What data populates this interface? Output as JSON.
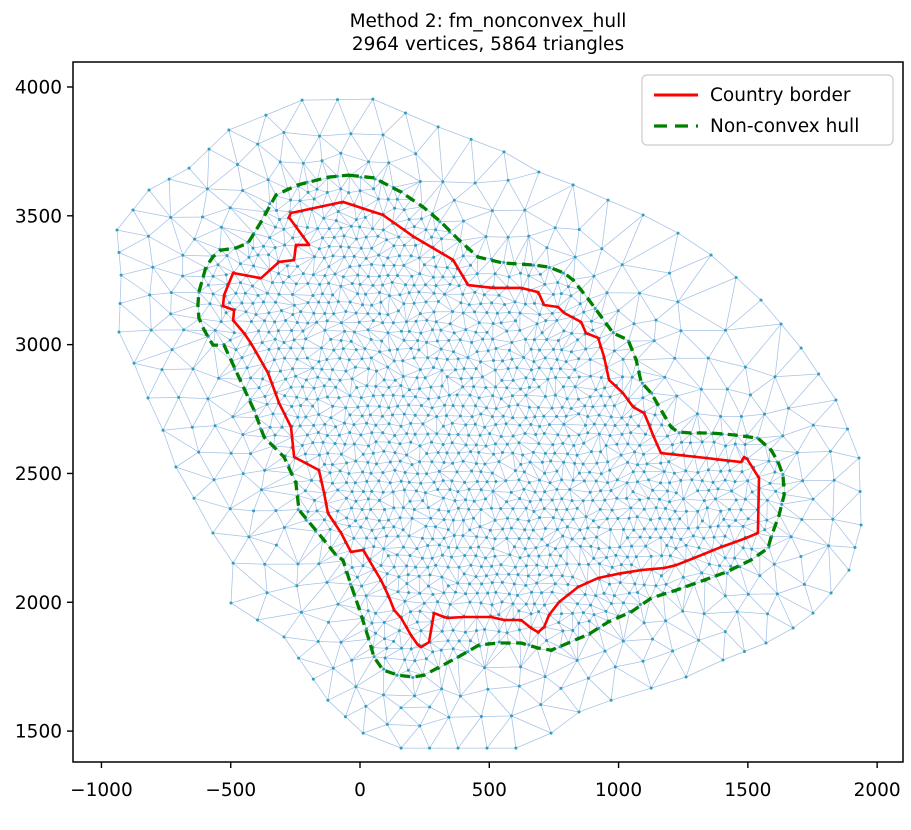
{
  "title": {
    "line1": "Method 2: fm_nonconvex_hull",
    "line2": "2964 vertices, 5864 triangles"
  },
  "legend": {
    "items": [
      {
        "label": "Country border",
        "color": "#ff0000",
        "linestyle": "solid"
      },
      {
        "label": "Non-convex hull",
        "color": "#008000",
        "linestyle": "dashed"
      }
    ]
  },
  "chart_data": {
    "type": "triangular-mesh",
    "title": "Method 2: fm_nonconvex_hull",
    "subtitle": "2964 vertices, 5864 triangles",
    "stated_vertex_count": 2964,
    "stated_triangle_count": 5864,
    "xlim": [
      -1110,
      2100
    ],
    "ylim": [
      1380,
      4097
    ],
    "xticks": [
      -1000,
      -500,
      0,
      500,
      1000,
      1500,
      2000
    ],
    "xtick_labels": [
      "−1000",
      "−500",
      "0",
      "500",
      "1000",
      "1500",
      "2000"
    ],
    "yticks": [
      1500,
      2000,
      2500,
      3000,
      3500,
      4000
    ],
    "ytick_labels": [
      "1500",
      "2000",
      "2500",
      "3000",
      "3500",
      "4000"
    ],
    "grid": false,
    "legend_position": "upper right",
    "series": {
      "country_border": {
        "name": "Country border",
        "color": "#ff0000",
        "closed": true,
        "linewidth": 2.6,
        "points": [
          [
            -66,
            3554
          ],
          [
            89,
            3503
          ],
          [
            209,
            3418
          ],
          [
            360,
            3329
          ],
          [
            418,
            3231
          ],
          [
            514,
            3220
          ],
          [
            623,
            3220
          ],
          [
            689,
            3204
          ],
          [
            712,
            3154
          ],
          [
            766,
            3146
          ],
          [
            789,
            3123
          ],
          [
            855,
            3088
          ],
          [
            874,
            3045
          ],
          [
            921,
            3026
          ],
          [
            944,
            2952
          ],
          [
            963,
            2863
          ],
          [
            1017,
            2812
          ],
          [
            1056,
            2758
          ],
          [
            1099,
            2734
          ],
          [
            1118,
            2688
          ],
          [
            1133,
            2649
          ],
          [
            1164,
            2579
          ],
          [
            1338,
            2560
          ],
          [
            1474,
            2544
          ],
          [
            1485,
            2564
          ],
          [
            1497,
            2556
          ],
          [
            1543,
            2482
          ],
          [
            1539,
            2269
          ],
          [
            1493,
            2249
          ],
          [
            1396,
            2214
          ],
          [
            1292,
            2172
          ],
          [
            1222,
            2144
          ],
          [
            1176,
            2133
          ],
          [
            1087,
            2125
          ],
          [
            1010,
            2113
          ],
          [
            921,
            2094
          ],
          [
            843,
            2059
          ],
          [
            770,
            2001
          ],
          [
            731,
            1950
          ],
          [
            712,
            1904
          ],
          [
            689,
            1884
          ],
          [
            661,
            1900
          ],
          [
            623,
            1931
          ],
          [
            557,
            1931
          ],
          [
            507,
            1943
          ],
          [
            402,
            1943
          ],
          [
            340,
            1939
          ],
          [
            325,
            1943
          ],
          [
            286,
            1958
          ],
          [
            267,
            1845
          ],
          [
            236,
            1826
          ],
          [
            224,
            1834
          ],
          [
            197,
            1873
          ],
          [
            159,
            1939
          ],
          [
            132,
            1970
          ],
          [
            112,
            2020
          ],
          [
            81,
            2086
          ],
          [
            12,
            2203
          ],
          [
            -35,
            2195
          ],
          [
            -73,
            2269
          ],
          [
            -124,
            2346
          ],
          [
            -139,
            2424
          ],
          [
            -159,
            2513
          ],
          [
            -255,
            2564
          ],
          [
            -267,
            2680
          ],
          [
            -313,
            2773
          ],
          [
            -356,
            2890
          ],
          [
            -422,
            3006
          ],
          [
            -449,
            3045
          ],
          [
            -491,
            3095
          ],
          [
            -487,
            3134
          ],
          [
            -530,
            3150
          ],
          [
            -526,
            3192
          ],
          [
            -491,
            3278
          ],
          [
            -383,
            3258
          ],
          [
            -313,
            3321
          ],
          [
            -255,
            3328
          ],
          [
            -248,
            3387
          ],
          [
            -197,
            3387
          ],
          [
            -275,
            3495
          ],
          [
            -267,
            3511
          ]
        ]
      },
      "nonconvex_hull": {
        "name": "Non-convex hull",
        "color": "#008000",
        "closed": true,
        "linewidth": 3.3,
        "dash": [
          10,
          5.5
        ],
        "points": [
          [
            -43,
            3658
          ],
          [
            54,
            3647
          ],
          [
            159,
            3592
          ],
          [
            244,
            3534
          ],
          [
            313,
            3476
          ],
          [
            383,
            3406
          ],
          [
            456,
            3340
          ],
          [
            553,
            3317
          ],
          [
            673,
            3309
          ],
          [
            731,
            3301
          ],
          [
            789,
            3278
          ],
          [
            824,
            3251
          ],
          [
            886,
            3173
          ],
          [
            979,
            3045
          ],
          [
            1037,
            3018
          ],
          [
            1068,
            2940
          ],
          [
            1087,
            2855
          ],
          [
            1126,
            2812
          ],
          [
            1203,
            2680
          ],
          [
            1230,
            2661
          ],
          [
            1280,
            2657
          ],
          [
            1358,
            2657
          ],
          [
            1454,
            2649
          ],
          [
            1539,
            2637
          ],
          [
            1590,
            2591
          ],
          [
            1617,
            2544
          ],
          [
            1636,
            2494
          ],
          [
            1640,
            2416
          ],
          [
            1621,
            2339
          ],
          [
            1590,
            2253
          ],
          [
            1578,
            2210
          ],
          [
            1512,
            2164
          ],
          [
            1416,
            2117
          ],
          [
            1331,
            2086
          ],
          [
            1222,
            2047
          ],
          [
            1126,
            2016
          ],
          [
            1048,
            1962
          ],
          [
            959,
            1923
          ],
          [
            886,
            1877
          ],
          [
            805,
            1842
          ],
          [
            739,
            1814
          ],
          [
            689,
            1822
          ],
          [
            623,
            1842
          ],
          [
            534,
            1842
          ],
          [
            460,
            1834
          ],
          [
            379,
            1787
          ],
          [
            306,
            1748
          ],
          [
            248,
            1717
          ],
          [
            205,
            1710
          ],
          [
            147,
            1717
          ],
          [
            89,
            1737
          ],
          [
            54,
            1787
          ],
          [
            35,
            1853
          ],
          [
            -4,
            1977
          ],
          [
            -35,
            2067
          ],
          [
            -66,
            2164
          ],
          [
            -93,
            2183
          ],
          [
            -139,
            2241
          ],
          [
            -236,
            2358
          ],
          [
            -248,
            2463
          ],
          [
            -294,
            2564
          ],
          [
            -371,
            2641
          ],
          [
            -410,
            2746
          ],
          [
            -499,
            2940
          ],
          [
            -526,
            2998
          ],
          [
            -569,
            2998
          ],
          [
            -603,
            3057
          ],
          [
            -623,
            3103
          ],
          [
            -627,
            3154
          ],
          [
            -623,
            3204
          ],
          [
            -607,
            3262
          ],
          [
            -596,
            3301
          ],
          [
            -569,
            3340
          ],
          [
            -538,
            3367
          ],
          [
            -480,
            3375
          ],
          [
            -433,
            3394
          ],
          [
            -383,
            3476
          ],
          [
            -325,
            3581
          ],
          [
            -240,
            3620
          ],
          [
            -124,
            3650
          ]
        ]
      },
      "mesh_outer_boundary": {
        "name": "mesh outer boundary",
        "closed": true,
        "points": [
          [
            -224,
            3949
          ],
          [
            50,
            3953
          ],
          [
            302,
            3845
          ],
          [
            557,
            3748
          ],
          [
            692,
            3670
          ],
          [
            824,
            3620
          ],
          [
            959,
            3561
          ],
          [
            1095,
            3503
          ],
          [
            1230,
            3433
          ],
          [
            1358,
            3348
          ],
          [
            1551,
            3173
          ],
          [
            1706,
            2987
          ],
          [
            1841,
            2785
          ],
          [
            1930,
            2560
          ],
          [
            1938,
            2300
          ],
          [
            1891,
            2125
          ],
          [
            1822,
            2036
          ],
          [
            1752,
            1958
          ],
          [
            1675,
            1900
          ],
          [
            1570,
            1842
          ],
          [
            1404,
            1776
          ],
          [
            1261,
            1710
          ],
          [
            1126,
            1667
          ],
          [
            971,
            1620
          ],
          [
            847,
            1574
          ],
          [
            739,
            1492
          ],
          [
            603,
            1434
          ],
          [
            379,
            1434
          ],
          [
            159,
            1434
          ],
          [
            12,
            1492
          ],
          [
            -124,
            1620
          ],
          [
            -294,
            1865
          ],
          [
            -499,
            1997
          ],
          [
            -491,
            2152
          ],
          [
            -569,
            2269
          ],
          [
            -642,
            2404
          ],
          [
            -712,
            2525
          ],
          [
            -762,
            2668
          ],
          [
            -820,
            2793
          ],
          [
            -874,
            2928
          ],
          [
            -932,
            3049
          ],
          [
            -924,
            3270
          ],
          [
            -940,
            3445
          ],
          [
            -816,
            3600
          ],
          [
            -661,
            3685
          ],
          [
            -507,
            3833
          ],
          [
            -364,
            3891
          ]
        ]
      }
    },
    "mesh_style": {
      "node_color": "#2f9fbe",
      "edge_color": "#5b8fd4",
      "edge_opacity": 0.55,
      "edge_width": 0.75,
      "node_size": 3.0,
      "base_spacing": 42,
      "coarse_growth": 240,
      "coarse_start": 1.35,
      "coarse_cap": 3.3,
      "border_sample_step": 44,
      "outer_sample_step": 112,
      "seed": 7
    },
    "axis_color": "#000000",
    "background": "#ffffff"
  }
}
